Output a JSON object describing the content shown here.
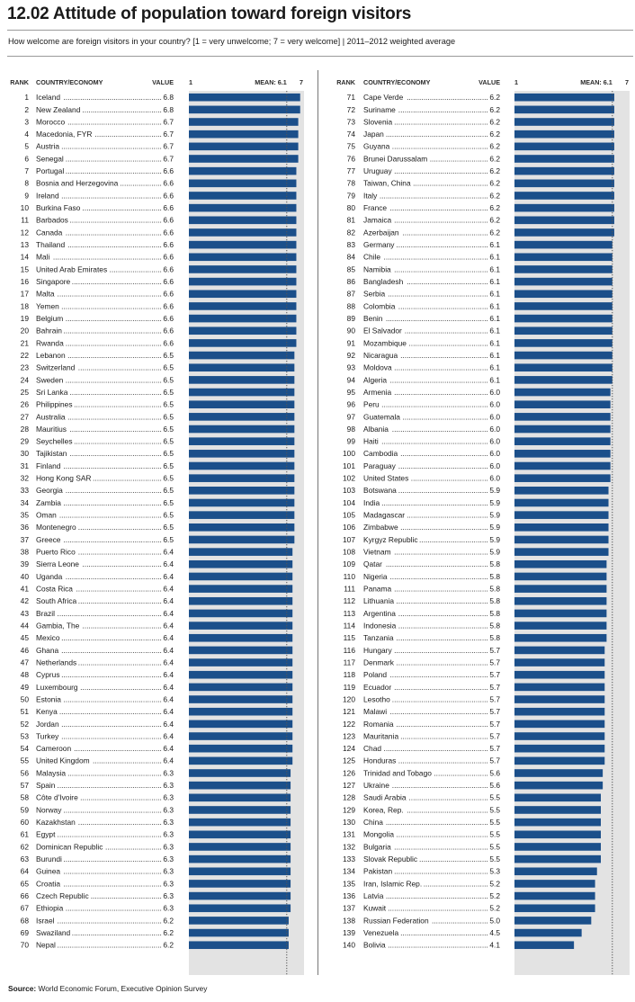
{
  "title": "12.02 Attitude of population toward foreign visitors",
  "subtitle": "How welcome are foreign visitors in your country? [1 = very unwelcome; 7 = very welcome] | 2011–2012 weighted average",
  "source_label": "Source:",
  "source_text": "World Economic Forum, Executive Opinion Survey",
  "colors": {
    "bar": "#1b4f8a",
    "track": "#e3e3e3",
    "mean_line": "#555555"
  },
  "chart_data": {
    "type": "bar",
    "orientation": "horizontal",
    "headers": {
      "rank": "RANK",
      "country": "COUNTRY/ECONOMY",
      "value": "VALUE",
      "scale_min": "1",
      "mean": "MEAN: 6.1",
      "scale_max": "7"
    },
    "xlim": [
      1,
      7
    ],
    "mean": 6.1,
    "columns": [
      [
        {
          "rank": 1,
          "country": "Iceland",
          "value": 6.8
        },
        {
          "rank": 2,
          "country": "New Zealand",
          "value": 6.8
        },
        {
          "rank": 3,
          "country": "Morocco",
          "value": 6.7
        },
        {
          "rank": 4,
          "country": "Macedonia, FYR",
          "value": 6.7
        },
        {
          "rank": 5,
          "country": "Austria",
          "value": 6.7
        },
        {
          "rank": 6,
          "country": "Senegal",
          "value": 6.7
        },
        {
          "rank": 7,
          "country": "Portugal",
          "value": 6.6
        },
        {
          "rank": 8,
          "country": "Bosnia and Herzegovina",
          "value": 6.6
        },
        {
          "rank": 9,
          "country": "Ireland",
          "value": 6.6
        },
        {
          "rank": 10,
          "country": "Burkina Faso",
          "value": 6.6
        },
        {
          "rank": 11,
          "country": "Barbados",
          "value": 6.6
        },
        {
          "rank": 12,
          "country": "Canada",
          "value": 6.6
        },
        {
          "rank": 13,
          "country": "Thailand",
          "value": 6.6
        },
        {
          "rank": 14,
          "country": "Mali",
          "value": 6.6
        },
        {
          "rank": 15,
          "country": "United Arab Emirates",
          "value": 6.6
        },
        {
          "rank": 16,
          "country": "Singapore",
          "value": 6.6
        },
        {
          "rank": 17,
          "country": "Malta",
          "value": 6.6
        },
        {
          "rank": 18,
          "country": "Yemen",
          "value": 6.6
        },
        {
          "rank": 19,
          "country": "Belgium",
          "value": 6.6
        },
        {
          "rank": 20,
          "country": "Bahrain",
          "value": 6.6
        },
        {
          "rank": 21,
          "country": "Rwanda",
          "value": 6.6
        },
        {
          "rank": 22,
          "country": "Lebanon",
          "value": 6.5
        },
        {
          "rank": 23,
          "country": "Switzerland",
          "value": 6.5
        },
        {
          "rank": 24,
          "country": "Sweden",
          "value": 6.5
        },
        {
          "rank": 25,
          "country": "Sri Lanka",
          "value": 6.5
        },
        {
          "rank": 26,
          "country": "Philippines",
          "value": 6.5
        },
        {
          "rank": 27,
          "country": "Australia",
          "value": 6.5
        },
        {
          "rank": 28,
          "country": "Mauritius",
          "value": 6.5
        },
        {
          "rank": 29,
          "country": "Seychelles",
          "value": 6.5
        },
        {
          "rank": 30,
          "country": "Tajikistan",
          "value": 6.5
        },
        {
          "rank": 31,
          "country": "Finland",
          "value": 6.5
        },
        {
          "rank": 32,
          "country": "Hong Kong SAR",
          "value": 6.5
        },
        {
          "rank": 33,
          "country": "Georgia",
          "value": 6.5
        },
        {
          "rank": 34,
          "country": "Zambia",
          "value": 6.5
        },
        {
          "rank": 35,
          "country": "Oman",
          "value": 6.5
        },
        {
          "rank": 36,
          "country": "Montenegro",
          "value": 6.5
        },
        {
          "rank": 37,
          "country": "Greece",
          "value": 6.5
        },
        {
          "rank": 38,
          "country": "Puerto Rico",
          "value": 6.4
        },
        {
          "rank": 39,
          "country": "Sierra Leone",
          "value": 6.4
        },
        {
          "rank": 40,
          "country": "Uganda",
          "value": 6.4
        },
        {
          "rank": 41,
          "country": "Costa Rica",
          "value": 6.4
        },
        {
          "rank": 42,
          "country": "South Africa",
          "value": 6.4
        },
        {
          "rank": 43,
          "country": "Brazil",
          "value": 6.4
        },
        {
          "rank": 44,
          "country": "Gambia, The",
          "value": 6.4
        },
        {
          "rank": 45,
          "country": "Mexico",
          "value": 6.4
        },
        {
          "rank": 46,
          "country": "Ghana",
          "value": 6.4
        },
        {
          "rank": 47,
          "country": "Netherlands",
          "value": 6.4
        },
        {
          "rank": 48,
          "country": "Cyprus",
          "value": 6.4
        },
        {
          "rank": 49,
          "country": "Luxembourg",
          "value": 6.4
        },
        {
          "rank": 50,
          "country": "Estonia",
          "value": 6.4
        },
        {
          "rank": 51,
          "country": "Kenya",
          "value": 6.4
        },
        {
          "rank": 52,
          "country": "Jordan",
          "value": 6.4
        },
        {
          "rank": 53,
          "country": "Turkey",
          "value": 6.4
        },
        {
          "rank": 54,
          "country": "Cameroon",
          "value": 6.4
        },
        {
          "rank": 55,
          "country": "United Kingdom",
          "value": 6.4
        },
        {
          "rank": 56,
          "country": "Malaysia",
          "value": 6.3
        },
        {
          "rank": 57,
          "country": "Spain",
          "value": 6.3
        },
        {
          "rank": 58,
          "country": "Côte d'Ivoire",
          "value": 6.3
        },
        {
          "rank": 59,
          "country": "Norway",
          "value": 6.3
        },
        {
          "rank": 60,
          "country": "Kazakhstan",
          "value": 6.3
        },
        {
          "rank": 61,
          "country": "Egypt",
          "value": 6.3
        },
        {
          "rank": 62,
          "country": "Dominican Republic",
          "value": 6.3
        },
        {
          "rank": 63,
          "country": "Burundi",
          "value": 6.3
        },
        {
          "rank": 64,
          "country": "Guinea",
          "value": 6.3
        },
        {
          "rank": 65,
          "country": "Croatia",
          "value": 6.3
        },
        {
          "rank": 66,
          "country": "Czech Republic",
          "value": 6.3
        },
        {
          "rank": 67,
          "country": "Ethiopia",
          "value": 6.3
        },
        {
          "rank": 68,
          "country": "Israel",
          "value": 6.2
        },
        {
          "rank": 69,
          "country": "Swaziland",
          "value": 6.2
        },
        {
          "rank": 70,
          "country": "Nepal",
          "value": 6.2
        }
      ],
      [
        {
          "rank": 71,
          "country": "Cape Verde",
          "value": 6.2
        },
        {
          "rank": 72,
          "country": "Suriname",
          "value": 6.2
        },
        {
          "rank": 73,
          "country": "Slovenia",
          "value": 6.2
        },
        {
          "rank": 74,
          "country": "Japan",
          "value": 6.2
        },
        {
          "rank": 75,
          "country": "Guyana",
          "value": 6.2
        },
        {
          "rank": 76,
          "country": "Brunei Darussalam",
          "value": 6.2
        },
        {
          "rank": 77,
          "country": "Uruguay",
          "value": 6.2
        },
        {
          "rank": 78,
          "country": "Taiwan, China",
          "value": 6.2
        },
        {
          "rank": 79,
          "country": "Italy",
          "value": 6.2
        },
        {
          "rank": 80,
          "country": "France",
          "value": 6.2
        },
        {
          "rank": 81,
          "country": "Jamaica",
          "value": 6.2
        },
        {
          "rank": 82,
          "country": "Azerbaijan",
          "value": 6.2
        },
        {
          "rank": 83,
          "country": "Germany",
          "value": 6.1
        },
        {
          "rank": 84,
          "country": "Chile",
          "value": 6.1
        },
        {
          "rank": 85,
          "country": "Namibia",
          "value": 6.1
        },
        {
          "rank": 86,
          "country": "Bangladesh",
          "value": 6.1
        },
        {
          "rank": 87,
          "country": "Serbia",
          "value": 6.1
        },
        {
          "rank": 88,
          "country": "Colombia",
          "value": 6.1
        },
        {
          "rank": 89,
          "country": "Benin",
          "value": 6.1
        },
        {
          "rank": 90,
          "country": "El Salvador",
          "value": 6.1
        },
        {
          "rank": 91,
          "country": "Mozambique",
          "value": 6.1
        },
        {
          "rank": 92,
          "country": "Nicaragua",
          "value": 6.1
        },
        {
          "rank": 93,
          "country": "Moldova",
          "value": 6.1
        },
        {
          "rank": 94,
          "country": "Algeria",
          "value": 6.1
        },
        {
          "rank": 95,
          "country": "Armenia",
          "value": 6.0
        },
        {
          "rank": 96,
          "country": "Peru",
          "value": 6.0
        },
        {
          "rank": 97,
          "country": "Guatemala",
          "value": 6.0
        },
        {
          "rank": 98,
          "country": "Albania",
          "value": 6.0
        },
        {
          "rank": 99,
          "country": "Haiti",
          "value": 6.0
        },
        {
          "rank": 100,
          "country": "Cambodia",
          "value": 6.0
        },
        {
          "rank": 101,
          "country": "Paraguay",
          "value": 6.0
        },
        {
          "rank": 102,
          "country": "United States",
          "value": 6.0
        },
        {
          "rank": 103,
          "country": "Botswana",
          "value": 5.9
        },
        {
          "rank": 104,
          "country": "India",
          "value": 5.9
        },
        {
          "rank": 105,
          "country": "Madagascar",
          "value": 5.9
        },
        {
          "rank": 106,
          "country": "Zimbabwe",
          "value": 5.9
        },
        {
          "rank": 107,
          "country": "Kyrgyz Republic",
          "value": 5.9
        },
        {
          "rank": 108,
          "country": "Vietnam",
          "value": 5.9
        },
        {
          "rank": 109,
          "country": "Qatar",
          "value": 5.8
        },
        {
          "rank": 110,
          "country": "Nigeria",
          "value": 5.8
        },
        {
          "rank": 111,
          "country": "Panama",
          "value": 5.8
        },
        {
          "rank": 112,
          "country": "Lithuania",
          "value": 5.8
        },
        {
          "rank": 113,
          "country": "Argentina",
          "value": 5.8
        },
        {
          "rank": 114,
          "country": "Indonesia",
          "value": 5.8
        },
        {
          "rank": 115,
          "country": "Tanzania",
          "value": 5.8
        },
        {
          "rank": 116,
          "country": "Hungary",
          "value": 5.7
        },
        {
          "rank": 117,
          "country": "Denmark",
          "value": 5.7
        },
        {
          "rank": 118,
          "country": "Poland",
          "value": 5.7
        },
        {
          "rank": 119,
          "country": "Ecuador",
          "value": 5.7
        },
        {
          "rank": 120,
          "country": "Lesotho",
          "value": 5.7
        },
        {
          "rank": 121,
          "country": "Malawi",
          "value": 5.7
        },
        {
          "rank": 122,
          "country": "Romania",
          "value": 5.7
        },
        {
          "rank": 123,
          "country": "Mauritania",
          "value": 5.7
        },
        {
          "rank": 124,
          "country": "Chad",
          "value": 5.7
        },
        {
          "rank": 125,
          "country": "Honduras",
          "value": 5.7
        },
        {
          "rank": 126,
          "country": "Trinidad and Tobago",
          "value": 5.6
        },
        {
          "rank": 127,
          "country": "Ukraine",
          "value": 5.6
        },
        {
          "rank": 128,
          "country": "Saudi Arabia",
          "value": 5.5
        },
        {
          "rank": 129,
          "country": "Korea, Rep.",
          "value": 5.5
        },
        {
          "rank": 130,
          "country": "China",
          "value": 5.5
        },
        {
          "rank": 131,
          "country": "Mongolia",
          "value": 5.5
        },
        {
          "rank": 132,
          "country": "Bulgaria",
          "value": 5.5
        },
        {
          "rank": 133,
          "country": "Slovak Republic",
          "value": 5.5
        },
        {
          "rank": 134,
          "country": "Pakistan",
          "value": 5.3
        },
        {
          "rank": 135,
          "country": "Iran, Islamic Rep.",
          "value": 5.2
        },
        {
          "rank": 136,
          "country": "Latvia",
          "value": 5.2
        },
        {
          "rank": 137,
          "country": "Kuwait",
          "value": 5.2
        },
        {
          "rank": 138,
          "country": "Russian Federation",
          "value": 5.0
        },
        {
          "rank": 139,
          "country": "Venezuela",
          "value": 4.5
        },
        {
          "rank": 140,
          "country": "Bolivia",
          "value": 4.1
        }
      ]
    ]
  }
}
